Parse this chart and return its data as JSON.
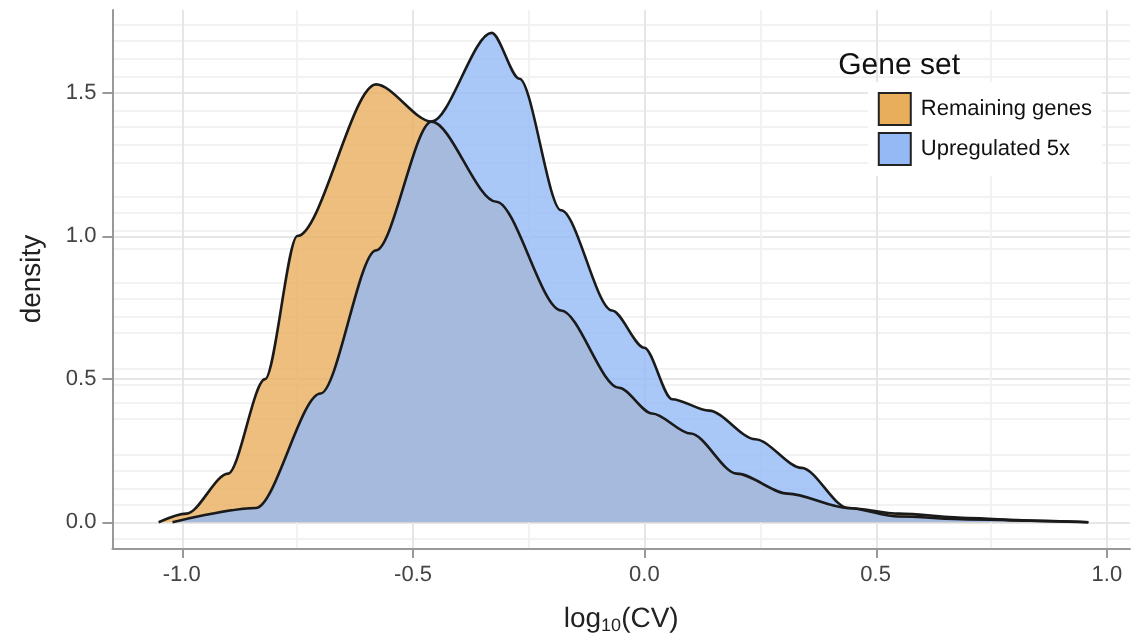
{
  "chart_data": {
    "type": "area",
    "xlabel": "log$_{10}$(CV)",
    "ylabel": "density",
    "legend_title": "Gene set",
    "xlim": [
      -1.15,
      1.05
    ],
    "ylim": [
      -0.09,
      1.79
    ],
    "xticks": [
      {
        "value": -1,
        "label": "-1.0"
      },
      {
        "value": -0.5,
        "label": "-0.5"
      },
      {
        "value": 0,
        "label": "0.0"
      },
      {
        "value": 0.5,
        "label": "0.5"
      },
      {
        "value": 1,
        "label": "1.0"
      }
    ],
    "yticks": [
      {
        "value": 0,
        "label": "0.0"
      },
      {
        "value": 0.5,
        "label": "0.5"
      },
      {
        "value": 1,
        "label": "1.0"
      },
      {
        "value": 1.5,
        "label": "1.5"
      }
    ],
    "grid": true,
    "legend": "top right",
    "series": [
      {
        "name": "Remaining genes",
        "color": "#e8ae5c",
        "x": [
          -1.05,
          -0.99,
          -0.9,
          -0.82,
          -0.75,
          -0.58,
          -0.46,
          -0.32,
          -0.18,
          -0.055,
          0.017,
          0.1,
          0.2,
          0.31,
          0.44,
          0.55,
          0.7,
          0.83,
          0.96
        ],
        "values": [
          0,
          0.03,
          0.17,
          0.5,
          1.0,
          1.53,
          1.4,
          1.12,
          0.74,
          0.47,
          0.38,
          0.31,
          0.17,
          0.1,
          0.05,
          0.03,
          0.015,
          0.005,
          0
        ]
      },
      {
        "name": "Upregulated 5x",
        "color": "#94b9f5",
        "x": [
          -1.02,
          -0.84,
          -0.7,
          -0.58,
          -0.46,
          -0.33,
          -0.27,
          -0.18,
          -0.07,
          0.0,
          0.06,
          0.14,
          0.24,
          0.34,
          0.44,
          0.55,
          0.7,
          0.96
        ],
        "values": [
          0,
          0.05,
          0.45,
          0.95,
          1.4,
          1.71,
          1.55,
          1.09,
          0.74,
          0.61,
          0.43,
          0.39,
          0.29,
          0.19,
          0.05,
          0.02,
          0.01,
          0
        ]
      }
    ]
  }
}
